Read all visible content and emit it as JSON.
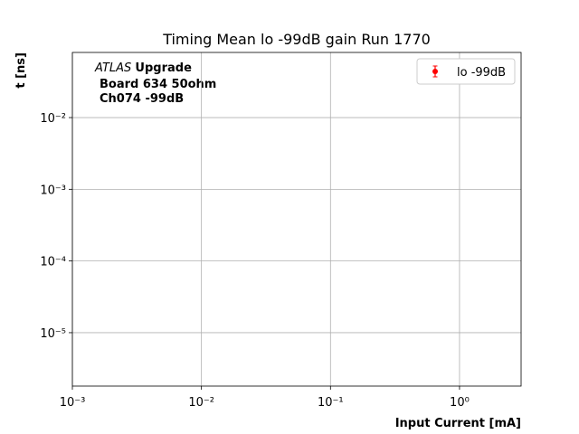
{
  "chart_data": {
    "type": "scatter",
    "title": "Timing Mean lo -99dB gain Run 1770",
    "xlabel": "Input Current [mA]",
    "ylabel": "t [ns]",
    "annotation": {
      "atlas": "ATLAS",
      "upgrade": "Upgrade",
      "lines": [
        "Board 634 50ohm",
        "Ch074 -99dB"
      ]
    },
    "xscale": "log",
    "yscale": "log",
    "xlim": [
      0.001,
      3
    ],
    "ylim": [
      1.8e-06,
      0.081
    ],
    "xticks": [
      {
        "value": 0.001,
        "label": "10⁻³"
      },
      {
        "value": 0.01,
        "label": "10⁻²"
      },
      {
        "value": 0.1,
        "label": "10⁻¹"
      },
      {
        "value": 1,
        "label": "10⁰"
      }
    ],
    "yticks": [
      {
        "value": 1e-05,
        "label": "10⁻⁵"
      },
      {
        "value": 0.0001,
        "label": "10⁻⁴"
      },
      {
        "value": 0.001,
        "label": "10⁻³"
      },
      {
        "value": 0.01,
        "label": "10⁻²"
      }
    ],
    "grid": true,
    "legend": "upper right",
    "series": [
      {
        "name": "lo -99dB",
        "color": "#ff0000",
        "x": [],
        "values": []
      }
    ]
  }
}
